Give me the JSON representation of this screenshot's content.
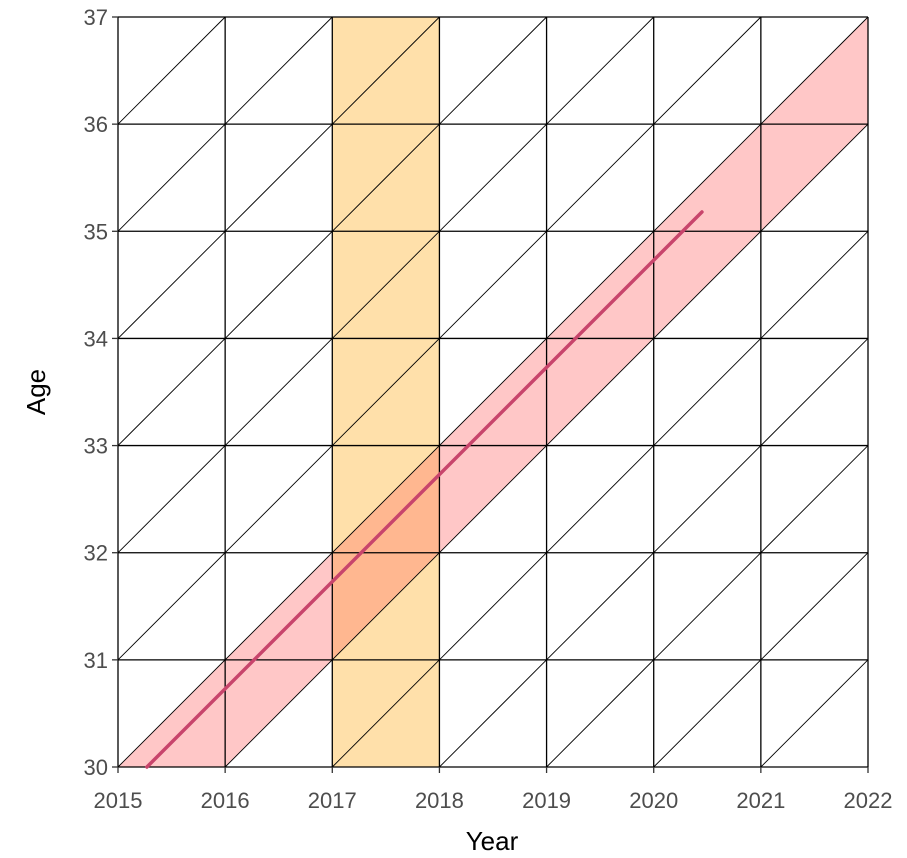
{
  "chart_data": {
    "type": "lexis-diagram",
    "title": "",
    "xlabel": "Year",
    "ylabel": "Age",
    "xlim": [
      2015,
      2022
    ],
    "ylim": [
      30,
      37
    ],
    "x_ticks": [
      2015,
      2016,
      2017,
      2018,
      2019,
      2020,
      2021,
      2022
    ],
    "y_ticks": [
      30,
      31,
      32,
      33,
      34,
      35,
      36,
      37
    ],
    "grid": true,
    "diagonal_lifelines": true,
    "period_band": {
      "x_start": 2017,
      "x_end": 2018
    },
    "cohort_band": {
      "from": [
        2015,
        30
      ],
      "to": [
        2022,
        37
      ],
      "width_years": 1
    },
    "lifeline": {
      "start": [
        2015.27,
        30
      ],
      "end": [
        2020.45,
        35.18
      ]
    },
    "colors": {
      "period_band": "#ffe0aa",
      "cohort_band": "#ffc7c7",
      "overlap": "#ffb790",
      "lifeline": "#c8456c",
      "grid": "#000000"
    }
  }
}
